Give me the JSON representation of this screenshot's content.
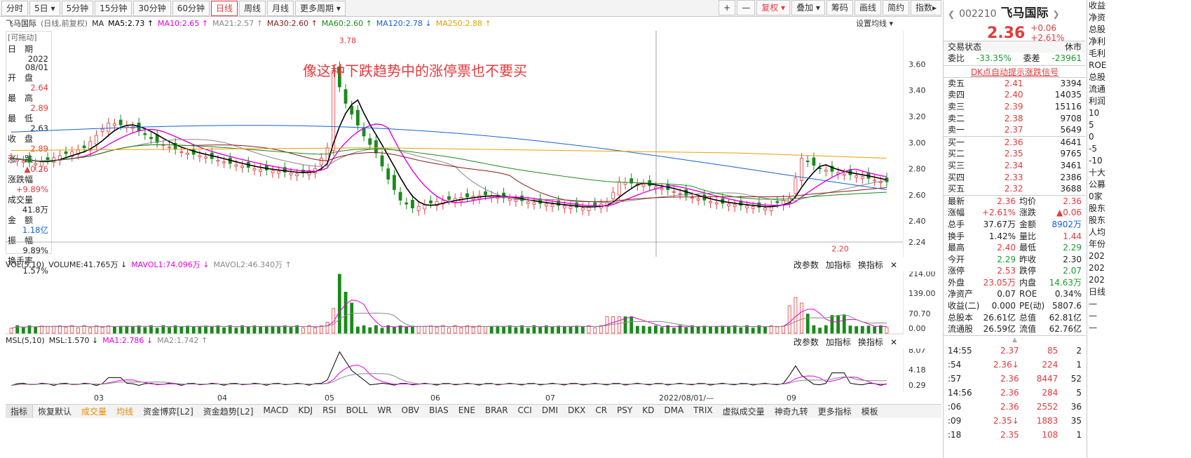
{
  "toolbar": {
    "buttons": [
      "分时",
      "5日 ▾",
      "5分钟",
      "15分钟",
      "30分钟",
      "60分钟",
      "日线",
      "周线",
      "月线",
      "更多周期 ▾"
    ],
    "active_index": 6,
    "right": [
      "+",
      "—",
      "复权 ▾",
      "叠加 ▾",
      "筹码",
      "画线",
      "简约",
      "指数▸"
    ]
  },
  "legend": {
    "stock": "飞马国际",
    "mode": "(日线,前复权)",
    "items": [
      {
        "t": "MA",
        "c": "#222"
      },
      {
        "t": "MA5:2.73 ↑",
        "c": "#000"
      },
      {
        "t": "MA10:2.65 ↑",
        "c": "#e000e0"
      },
      {
        "t": "MA21:2.57 ↑",
        "c": "#888888"
      },
      {
        "t": "MA30:2.60 ↑",
        "c": "#8b1a1a"
      },
      {
        "t": "MA60:2.60 ↑",
        "c": "#1a8a1a"
      },
      {
        "t": "MA120:2.78 ↓",
        "c": "#1560d6"
      },
      {
        "t": "MA250:2.88 ↑",
        "c": "#e8a000"
      }
    ],
    "settings": "设置均线 ▾"
  },
  "info": {
    "tag": "[可拖动]",
    "items": [
      {
        "l": "日　期",
        "v": "2022\n08/01",
        "c": "#222"
      },
      {
        "l": "开　盘",
        "v": "2.64",
        "c": "#e4393c"
      },
      {
        "l": "最　高",
        "v": "2.89",
        "c": "#e4393c"
      },
      {
        "l": "最　低",
        "v": "2.63",
        "c": "#222"
      },
      {
        "l": "收　盘",
        "v": "2.89",
        "c": "#e4393c"
      },
      {
        "l": "涨　跌",
        "v": "▲0.26",
        "c": "#e4393c"
      },
      {
        "l": "涨跌幅",
        "v": "+9.89%",
        "c": "#e4393c"
      },
      {
        "l": "成交量",
        "v": "41.8万",
        "c": "#222"
      },
      {
        "l": "金　额",
        "v": "1.18亿",
        "c": "#1560d6"
      },
      {
        "l": "振　幅",
        "v": "9.89%",
        "c": "#222"
      },
      {
        "l": "换手率",
        "v": "1.57%",
        "c": "#222"
      }
    ]
  },
  "annotation": "像这种下跌趋势中的涨停票也不要买",
  "high_label": "3.78",
  "low_label": "2.20",
  "y_ticks": [
    "3.60",
    "3.40",
    "3.20",
    "3.00",
    "2.80",
    "2.60",
    "2.40",
    "2.24"
  ],
  "x_ticks": [
    "03",
    "04",
    "05",
    "06",
    "07",
    "2022/08/01/—",
    "09"
  ],
  "vol": {
    "legend": [
      {
        "t": "VOL(5,10)",
        "c": "#222"
      },
      {
        "t": "VOLUME:41.765万 ↓",
        "c": "#222"
      },
      {
        "t": "MAVOL1:74.096万 ↓",
        "c": "#e000e0"
      },
      {
        "t": "MAVOL2:46.340万 ↑",
        "c": "#888"
      }
    ],
    "ticks": [
      "214.00",
      "139.00",
      "70.70",
      "0.00"
    ]
  },
  "msl": {
    "legend": [
      {
        "t": "MSL(5,10)",
        "c": "#222"
      },
      {
        "t": "MSL:1.570 ↓",
        "c": "#222"
      },
      {
        "t": "MA1:2.786 ↓",
        "c": "#e000e0"
      },
      {
        "t": "MA2:1.742 ↑",
        "c": "#888"
      }
    ],
    "ticks": [
      "8.07",
      "4.18",
      "0.29"
    ]
  },
  "panel_buttons": [
    "改参数",
    "加指标",
    "换指标",
    "✕"
  ],
  "bottom_tabs": [
    "指标",
    "恢复默认",
    "成交量",
    "均线",
    "资金博弈[L2]",
    "资金趋势[L2]",
    "MACD",
    "KDJ",
    "RSI",
    "BOLL",
    "WR",
    "OBV",
    "BIAS",
    "ENE",
    "BRAR",
    "CCI",
    "DMI",
    "DKX",
    "CR",
    "PSY",
    "KD",
    "DMA",
    "TRIX",
    "虚拟成交量",
    "神奇九转",
    "更多指标",
    "模板"
  ],
  "quote": {
    "code": "002210",
    "name": "飞马国际",
    "price": "2.36",
    "chg": "+0.06",
    "pct": "+2.61%",
    "status_l": "交易状态",
    "status_r": "休市",
    "weibi_l": "委比",
    "weibi_v": "-33.35%",
    "weicha_l": "委差",
    "weicha_v": "-23961",
    "signal": "DK点自动提示涨跌信号",
    "asks": [
      [
        "卖五",
        "2.41",
        "3394"
      ],
      [
        "卖四",
        "2.40",
        "14035"
      ],
      [
        "卖三",
        "2.39",
        "15116"
      ],
      [
        "卖二",
        "2.38",
        "9708"
      ],
      [
        "卖一",
        "2.37",
        "5649"
      ]
    ],
    "bids": [
      [
        "买一",
        "2.36",
        "4641"
      ],
      [
        "买二",
        "2.35",
        "9765"
      ],
      [
        "买三",
        "2.34",
        "3461"
      ],
      [
        "买四",
        "2.33",
        "2386"
      ],
      [
        "买五",
        "2.32",
        "3688"
      ]
    ],
    "stats": [
      [
        "最新",
        "2.36",
        "red",
        "均价",
        "2.36",
        "red"
      ],
      [
        "涨幅",
        "+2.61%",
        "red",
        "涨跌",
        "▲0.06",
        "red"
      ],
      [
        "总手",
        "37.67万",
        "dark",
        "金额",
        "8902万",
        "blue"
      ],
      [
        "换手",
        "1.42%",
        "dark",
        "量比",
        "1.44",
        "red"
      ],
      [
        "最高",
        "2.40",
        "red",
        "最低",
        "2.29",
        "green"
      ],
      [
        "今开",
        "2.29",
        "green",
        "昨收",
        "2.30",
        "dark"
      ],
      [
        "涨停",
        "2.53",
        "red",
        "跌停",
        "2.07",
        "green"
      ],
      [
        "外盘",
        "23.05万",
        "red",
        "内盘",
        "14.63万",
        "green"
      ],
      [
        "净资产",
        "0.07",
        "dark",
        "ROE",
        "0.34%",
        "dark"
      ],
      [
        "收益(二)",
        "0.000",
        "dark",
        "PE(动)",
        "5807.6",
        "dark"
      ],
      [
        "总股本",
        "26.61亿",
        "dark",
        "总值",
        "62.81亿",
        "dark"
      ],
      [
        "流通股",
        "26.59亿",
        "dark",
        "流值",
        "62.76亿",
        "dark"
      ]
    ],
    "ticks": [
      [
        "14:55",
        "2.37",
        "",
        "85",
        "2"
      ],
      [
        ":54",
        "2.36",
        "↓",
        "224",
        "1"
      ],
      [
        ":57",
        "2.36",
        "",
        "8447",
        "52"
      ],
      [
        "14:56",
        "2.36",
        "",
        "284",
        "5"
      ],
      [
        ":06",
        "2.36",
        "",
        "2552",
        "36"
      ],
      [
        ":09",
        "2.35",
        "↓",
        "1883",
        "35"
      ],
      [
        ":18",
        "2.35",
        "",
        "108",
        "1"
      ]
    ]
  },
  "far_right": [
    "收益",
    "净资",
    "总股",
    "净利",
    "毛利",
    "ROE",
    "总股",
    "流通",
    "利润",
    "10",
    "5",
    "0",
    "-5",
    "-10",
    "十大",
    "公募",
    "0家",
    "股东",
    "股东",
    "人均",
    "年份",
    "202",
    "202",
    "202",
    "日线",
    "—",
    "—",
    "—"
  ]
}
